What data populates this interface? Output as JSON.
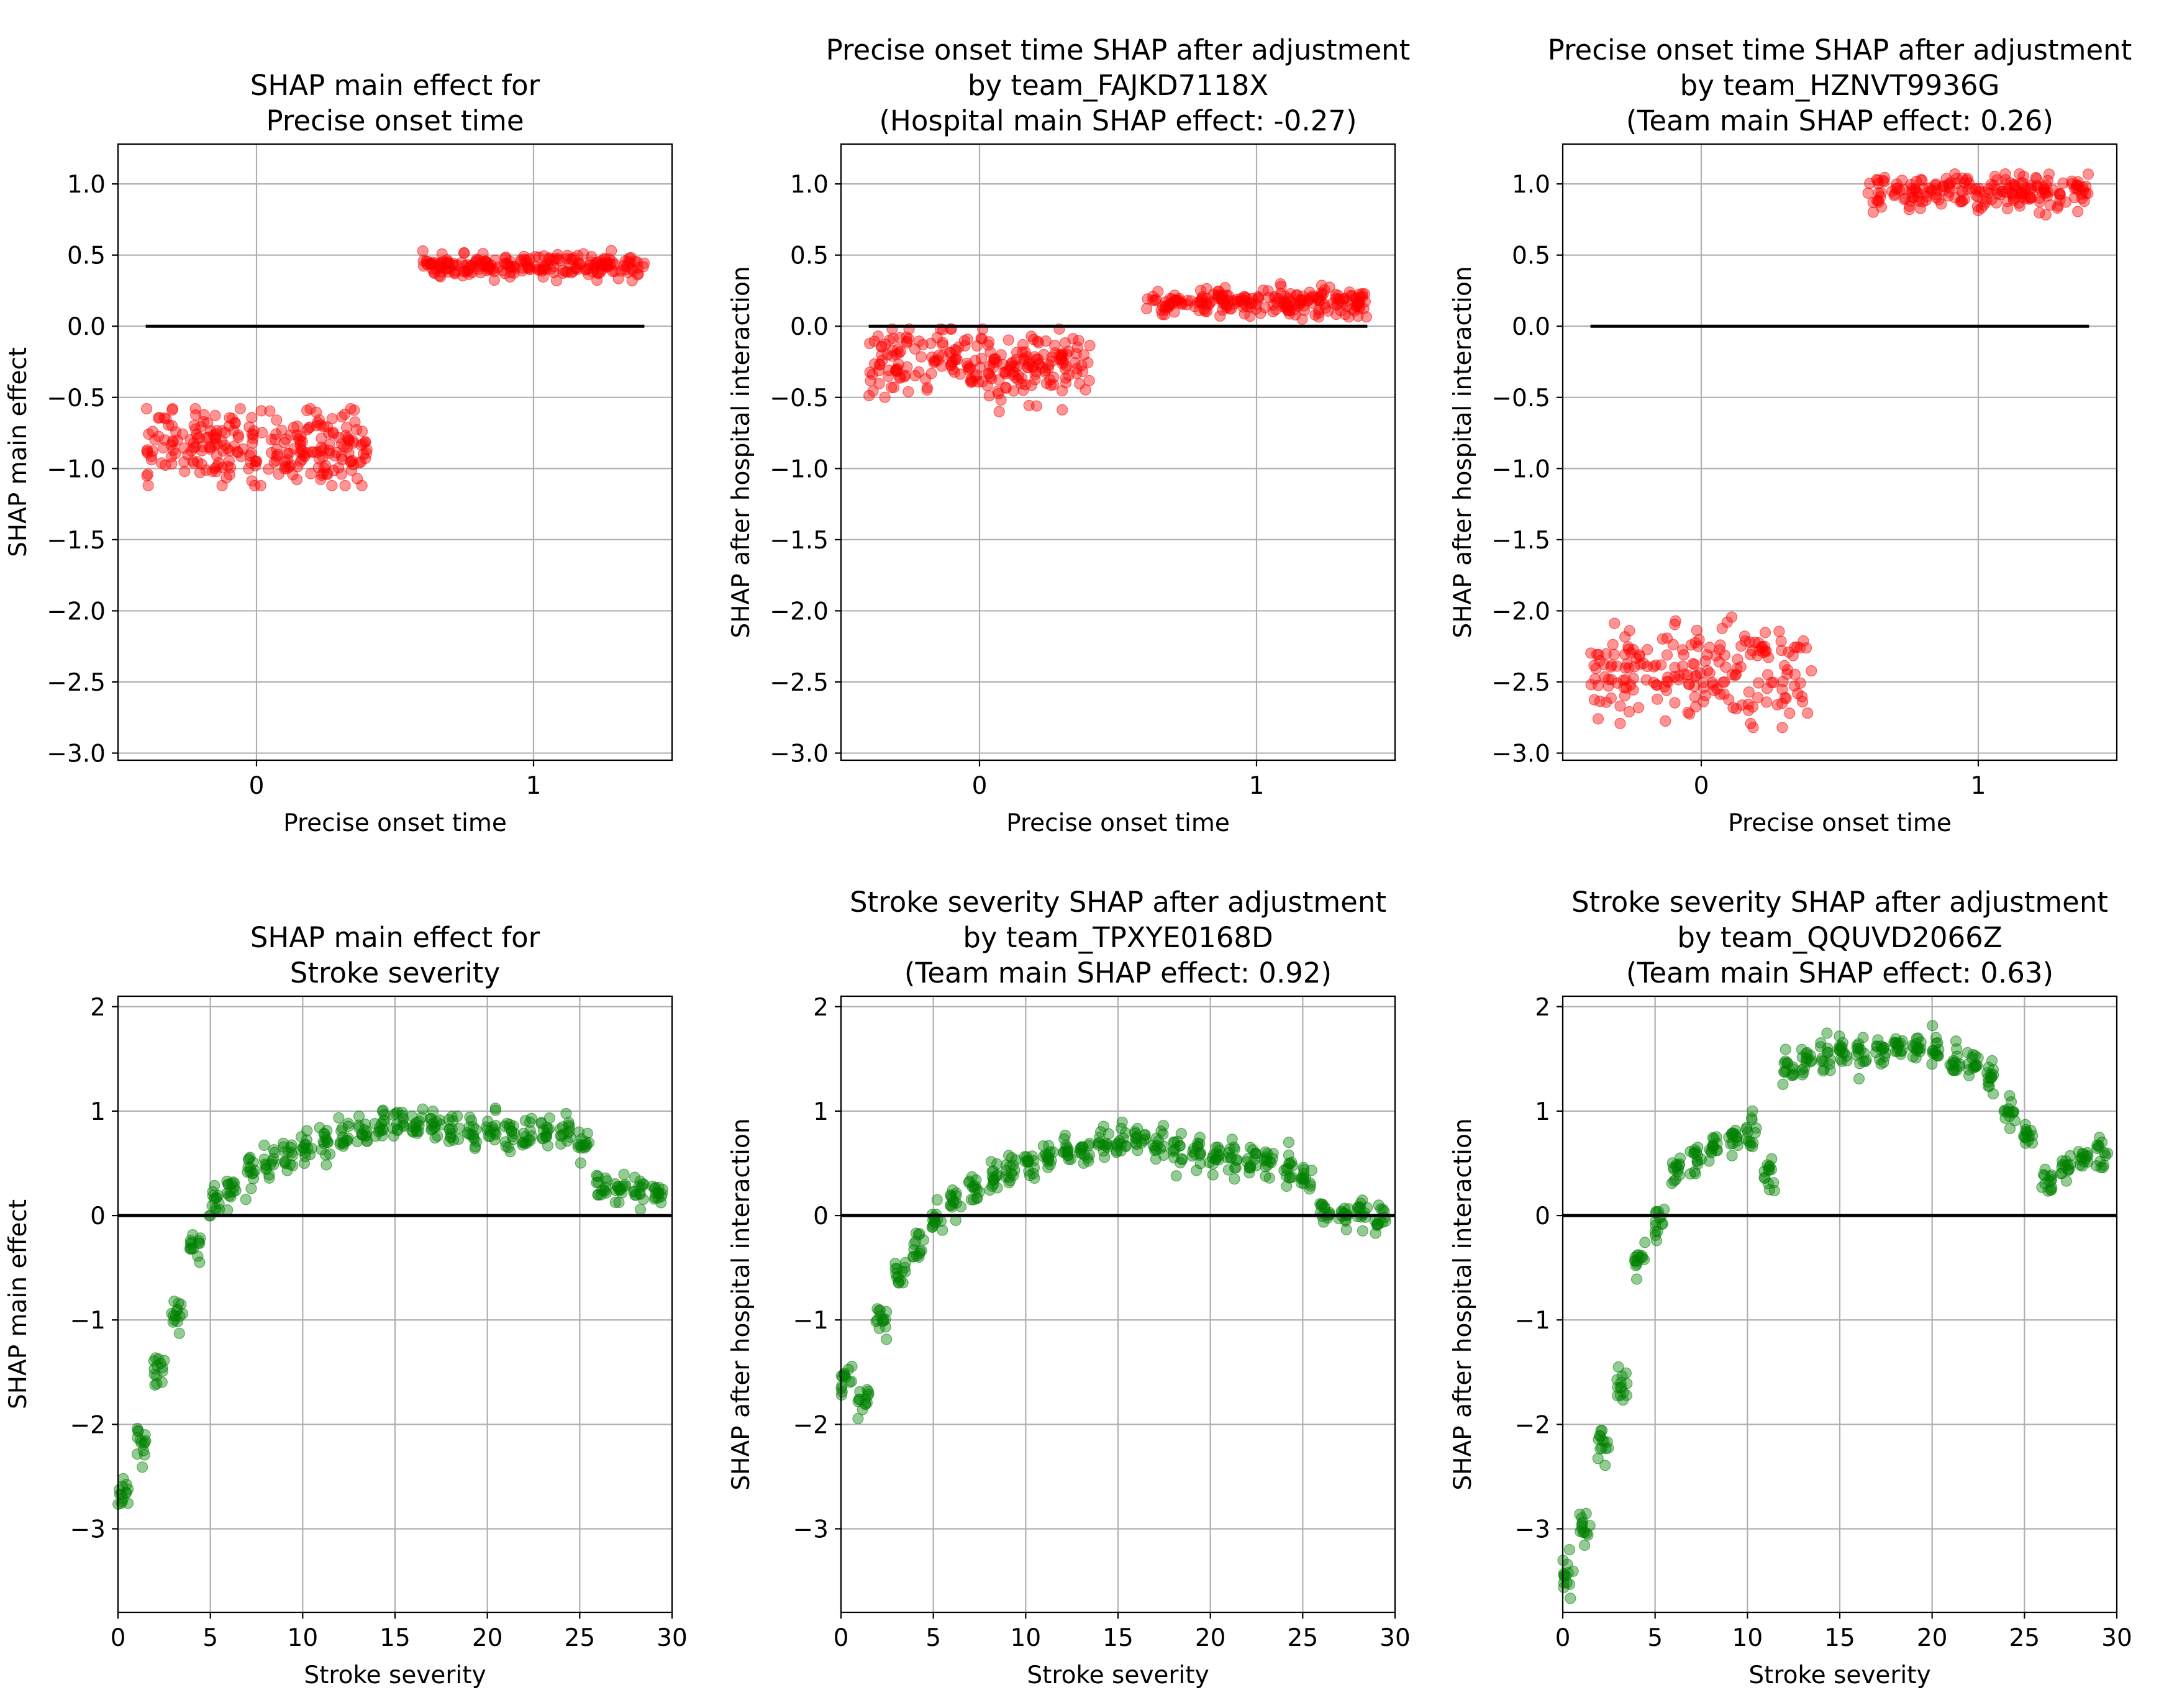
{
  "figure": {
    "marker_colors": {
      "onset": "#ff0000",
      "severity": "#008000"
    }
  },
  "chart_data": [
    {
      "type": "scatter",
      "title": "SHAP main effect for\nPrecise onset time",
      "xlabel": "Precise onset time",
      "ylabel": "SHAP main effect",
      "xlim": [
        -0.5,
        1.5
      ],
      "ylim": [
        -3.05,
        1.28
      ],
      "xticks": [
        0,
        1
      ],
      "yticks": [
        1.0,
        0.5,
        0.0,
        -0.5,
        -1.0,
        -1.5,
        -2.0,
        -2.5,
        -3.0
      ],
      "ytick_labels": [
        "1.0",
        "0.5",
        "0.0",
        "−0.5",
        "−1.0",
        "−1.5",
        "−2.0",
        "−2.5",
        "−3.0"
      ],
      "grid": true,
      "color": "#ff0000",
      "zero_line": [
        -0.4,
        1.4
      ],
      "series": [
        {
          "values": [
            {
              "x": 0,
              "mean": -0.84,
              "spread": 0.13,
              "min": -1.12,
              "max": -0.58,
              "n": 260
            },
            {
              "x": 1,
              "mean": 0.42,
              "spread": 0.04,
              "min": 0.32,
              "max": 0.56,
              "n": 220
            }
          ]
        }
      ]
    },
    {
      "type": "scatter",
      "title": "Precise onset time SHAP after adjustment\nby team_FAJKD7118X\n(Hospital main SHAP effect: -0.27)",
      "xlabel": "Precise onset time",
      "ylabel": "SHAP after hospital interaction",
      "xlim": [
        -0.5,
        1.5
      ],
      "ylim": [
        -3.05,
        1.28
      ],
      "xticks": [
        0,
        1
      ],
      "yticks": [
        1.0,
        0.5,
        0.0,
        -0.5,
        -1.0,
        -1.5,
        -2.0,
        -2.5,
        -3.0
      ],
      "ytick_labels": [
        "1.0",
        "0.5",
        "0.0",
        "−0.5",
        "−1.0",
        "−1.5",
        "−2.0",
        "−2.5",
        "−3.0"
      ],
      "grid": true,
      "color": "#ff0000",
      "zero_line": [
        -0.4,
        1.4
      ],
      "series": [
        {
          "values": [
            {
              "x": 0,
              "mean": -0.27,
              "spread": 0.12,
              "min": -0.6,
              "max": -0.02,
              "n": 240
            },
            {
              "x": 1,
              "mean": 0.17,
              "spread": 0.05,
              "min": 0.05,
              "max": 0.3,
              "n": 220
            }
          ]
        }
      ]
    },
    {
      "type": "scatter",
      "title": "Precise onset time SHAP after adjustment\nby team_HZNVT9936G\n(Team main SHAP effect: 0.26)",
      "xlabel": "Precise onset time",
      "ylabel": "SHAP after hospital interaction",
      "xlim": [
        -0.5,
        1.5
      ],
      "ylim": [
        -3.05,
        1.28
      ],
      "xticks": [
        0,
        1
      ],
      "yticks": [
        1.0,
        0.5,
        0.0,
        -0.5,
        -1.0,
        -1.5,
        -2.0,
        -2.5,
        -3.0
      ],
      "ytick_labels": [
        "1.0",
        "0.5",
        "0.0",
        "−0.5",
        "−1.0",
        "−1.5",
        "−2.0",
        "−2.5",
        "−3.0"
      ],
      "grid": true,
      "color": "#ff0000",
      "zero_line": [
        -0.4,
        1.4
      ],
      "series": [
        {
          "values": [
            {
              "x": 0,
              "mean": -2.45,
              "spread": 0.17,
              "min": -2.82,
              "max": -1.88,
              "n": 200
            },
            {
              "x": 1,
              "mean": 0.94,
              "spread": 0.06,
              "min": 0.76,
              "max": 1.07,
              "n": 200
            }
          ]
        }
      ]
    },
    {
      "type": "scatter",
      "title": "SHAP main effect for\nStroke severity",
      "xlabel": "Stroke severity",
      "ylabel": "SHAP main effect",
      "xlim": [
        0,
        30
      ],
      "ylim": [
        -3.8,
        2.1
      ],
      "xticks": [
        0,
        5,
        10,
        15,
        20,
        25,
        30
      ],
      "yticks": [
        2,
        1,
        0,
        -1,
        -2,
        -3
      ],
      "ytick_labels": [
        "2",
        "1",
        "0",
        "−1",
        "−2",
        "−3"
      ],
      "grid": true,
      "color": "#008000",
      "series": [
        {
          "values": [
            [
              0,
              -2.7
            ],
            [
              1,
              -2.2
            ],
            [
              2,
              -1.5
            ],
            [
              3,
              -0.95
            ],
            [
              4,
              -0.28
            ],
            [
              5,
              0.12
            ],
            [
              6,
              0.28
            ],
            [
              7,
              0.42
            ],
            [
              8,
              0.53
            ],
            [
              9,
              0.6
            ],
            [
              10,
              0.66
            ],
            [
              11,
              0.72
            ],
            [
              12,
              0.75
            ],
            [
              13,
              0.8
            ],
            [
              14,
              0.86
            ],
            [
              15,
              0.86
            ],
            [
              16,
              0.86
            ],
            [
              17,
              0.84
            ],
            [
              18,
              0.84
            ],
            [
              19,
              0.83
            ],
            [
              20,
              0.82
            ],
            [
              21,
              0.8
            ],
            [
              22,
              0.8
            ],
            [
              23,
              0.8
            ],
            [
              24,
              0.76
            ],
            [
              25,
              0.7
            ],
            [
              26,
              0.24
            ],
            [
              27,
              0.22
            ],
            [
              28,
              0.22
            ],
            [
              29,
              0.2
            ]
          ]
        }
      ]
    },
    {
      "type": "scatter",
      "title": "Stroke severity SHAP after adjustment\nby team_TPXYE0168D\n(Team main SHAP effect: 0.92)",
      "xlabel": "Stroke severity",
      "ylabel": "SHAP after hospital interaction",
      "xlim": [
        0,
        30
      ],
      "ylim": [
        -3.8,
        2.1
      ],
      "xticks": [
        0,
        5,
        10,
        15,
        20,
        25,
        30
      ],
      "yticks": [
        2,
        1,
        0,
        -1,
        -2,
        -3
      ],
      "ytick_labels": [
        "2",
        "1",
        "0",
        "−1",
        "−2",
        "−3"
      ],
      "grid": true,
      "color": "#008000",
      "series": [
        {
          "values": [
            [
              0,
              -1.6
            ],
            [
              1,
              -1.75
            ],
            [
              2,
              -1.0
            ],
            [
              3,
              -0.55
            ],
            [
              4,
              -0.3
            ],
            [
              5,
              -0.05
            ],
            [
              6,
              0.12
            ],
            [
              7,
              0.25
            ],
            [
              8,
              0.36
            ],
            [
              9,
              0.43
            ],
            [
              10,
              0.5
            ],
            [
              11,
              0.55
            ],
            [
              12,
              0.6
            ],
            [
              13,
              0.64
            ],
            [
              14,
              0.68
            ],
            [
              15,
              0.7
            ],
            [
              16,
              0.69
            ],
            [
              17,
              0.66
            ],
            [
              18,
              0.62
            ],
            [
              19,
              0.58
            ],
            [
              20,
              0.55
            ],
            [
              21,
              0.52
            ],
            [
              22,
              0.5
            ],
            [
              23,
              0.48
            ],
            [
              24,
              0.45
            ],
            [
              25,
              0.35
            ],
            [
              26,
              0.05
            ],
            [
              27,
              0.0
            ],
            [
              28,
              0.0
            ],
            [
              29,
              -0.02
            ]
          ]
        }
      ]
    },
    {
      "type": "scatter",
      "title": "Stroke severity SHAP after adjustment\nby team_QQUVD2066Z\n(Team main SHAP effect: 0.63)",
      "xlabel": "Stroke severity",
      "ylabel": "SHAP after hospital interaction",
      "xlim": [
        0,
        30
      ],
      "ylim": [
        -3.8,
        2.1
      ],
      "xticks": [
        0,
        5,
        10,
        15,
        20,
        25,
        30
      ],
      "yticks": [
        2,
        1,
        0,
        -1,
        -2,
        -3
      ],
      "ytick_labels": [
        "2",
        "1",
        "0",
        "−1",
        "−2",
        "−3"
      ],
      "grid": true,
      "color": "#008000",
      "series": [
        {
          "values": [
            [
              0,
              -3.4
            ],
            [
              1,
              -3.0
            ],
            [
              2,
              -2.2
            ],
            [
              3,
              -1.62
            ],
            [
              4,
              -0.4
            ],
            [
              5,
              -0.05
            ],
            [
              6,
              0.45
            ],
            [
              7,
              0.55
            ],
            [
              8,
              0.66
            ],
            [
              9,
              0.73
            ],
            [
              10,
              0.8
            ],
            [
              11,
              0.45
            ],
            [
              12,
              1.4
            ],
            [
              13,
              1.5
            ],
            [
              14,
              1.52
            ],
            [
              15,
              1.55
            ],
            [
              16,
              1.58
            ],
            [
              17,
              1.6
            ],
            [
              18,
              1.62
            ],
            [
              19,
              1.64
            ],
            [
              20,
              1.6
            ],
            [
              21,
              1.48
            ],
            [
              22,
              1.42
            ],
            [
              23,
              1.35
            ],
            [
              24,
              1.0
            ],
            [
              25,
              0.75
            ],
            [
              26,
              0.35
            ],
            [
              27,
              0.45
            ],
            [
              28,
              0.55
            ],
            [
              29,
              0.58
            ]
          ]
        }
      ]
    }
  ]
}
